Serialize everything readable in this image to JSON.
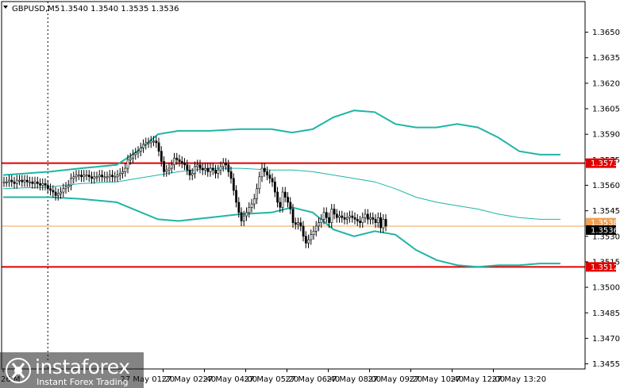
{
  "header": {
    "symbol_label": "GBPUSD,M5",
    "ohlc_text": "1.3540 1.3540 1.3535 1.3536",
    "dropdown_icon": "triangle-down-icon"
  },
  "brand": {
    "name": "instaforex",
    "tagline": "Instant Forex Trading",
    "icon": "instaforex-logo-icon"
  },
  "colors": {
    "background": "#ffffff",
    "candle": "#000000",
    "bollinger": "#1fb5a6",
    "moving_average": "#1fb5a6",
    "level_line": "#e00000",
    "current_price_line": "#f0a050",
    "current_price_tag": "#000000"
  },
  "chart_data": {
    "type": "candlestick",
    "symbol": "GBPUSD",
    "timeframe": "M5",
    "ylim": [
      1.3452,
      1.3668
    ],
    "y_ticks": [
      "1.3650",
      "1.3635",
      "1.3620",
      "1.3605",
      "1.3590",
      "1.3575",
      "1.3560",
      "1.3545",
      "1.3530",
      "1.3515",
      "1.3500",
      "1.3485",
      "1.3470",
      "1.3455"
    ],
    "x_ticks": [
      "26 May 2021",
      "27 May 01:20",
      "27 May 02:40",
      "27 May 04:00",
      "27 May 05:20",
      "27 May 06:40",
      "27 May 08:00",
      "27 May 09:20",
      "27 May 10:40",
      "27 May 12:00",
      "27 May 13:20"
    ],
    "x_tick_indices": [
      0,
      46,
      62,
      78,
      94,
      110,
      126,
      142,
      158,
      174,
      190
    ],
    "first_tick_display": "26 M",
    "session_separator_index": 17,
    "horizontal_levels": [
      {
        "value": 1.3573,
        "label": "1.3573",
        "color": "#e00000"
      },
      {
        "value": 1.3512,
        "label": "1.3512",
        "color": "#e00000"
      }
    ],
    "current_price": {
      "value": 1.3536,
      "label": "1.3536",
      "hidden_tag_value": "1.3538"
    },
    "closes": [
      1.3562,
      1.3562,
      1.3563,
      1.3562,
      1.3561,
      1.3563,
      1.3563,
      1.3562,
      1.3563,
      1.3562,
      1.3562,
      1.3561,
      1.3562,
      1.3561,
      1.356,
      1.3561,
      1.356,
      1.3558,
      1.3557,
      1.3556,
      1.3554,
      1.3555,
      1.3556,
      1.3558,
      1.3559,
      1.356,
      1.3564,
      1.3565,
      1.3566,
      1.3566,
      1.3565,
      1.3566,
      1.3566,
      1.3565,
      1.3564,
      1.3565,
      1.3565,
      1.3566,
      1.3565,
      1.3565,
      1.3565,
      1.3566,
      1.3565,
      1.3565,
      1.3566,
      1.3567,
      1.3568,
      1.357,
      1.3575,
      1.3576,
      1.3578,
      1.3579,
      1.358,
      1.3582,
      1.3584,
      1.3585,
      1.3585,
      1.3586,
      1.3586,
      1.3585,
      1.358,
      1.3574,
      1.3568,
      1.3569,
      1.357,
      1.3572,
      1.3576,
      1.3575,
      1.3574,
      1.3573,
      1.3572,
      1.3569,
      1.3566,
      1.3567,
      1.3571,
      1.3572,
      1.357,
      1.3569,
      1.357,
      1.3568,
      1.357,
      1.3569,
      1.3567,
      1.3569,
      1.3571,
      1.3573,
      1.3572,
      1.3568,
      1.3564,
      1.3557,
      1.355,
      1.3544,
      1.3539,
      1.3542,
      1.3544,
      1.3547,
      1.3549,
      1.3552,
      1.3558,
      1.3565,
      1.357,
      1.3568,
      1.3566,
      1.3564,
      1.3562,
      1.3556,
      1.355,
      1.3547,
      1.3556,
      1.3553,
      1.355,
      1.3546,
      1.3538,
      1.3537,
      1.3538,
      1.3536,
      1.353,
      1.3526,
      1.3528,
      1.3531,
      1.3533,
      1.3536,
      1.3538,
      1.354,
      1.3544,
      1.3541,
      1.3538,
      1.3546,
      1.3543,
      1.3541,
      1.3542,
      1.3541,
      1.354,
      1.3541,
      1.3542,
      1.3541,
      1.354,
      1.3539,
      1.3538,
      1.3541,
      1.3543,
      1.354,
      1.3541,
      1.354,
      1.3538,
      1.3541,
      1.3535,
      1.354,
      1.3536
    ],
    "bands": {
      "upper": [
        [
          0,
          1.3566
        ],
        [
          18,
          1.3568
        ],
        [
          30,
          1.357
        ],
        [
          44,
          1.3572
        ],
        [
          52,
          1.358
        ],
        [
          60,
          1.359
        ],
        [
          68,
          1.3592
        ],
        [
          80,
          1.3592
        ],
        [
          92,
          1.3593
        ],
        [
          104,
          1.3593
        ],
        [
          112,
          1.3591
        ],
        [
          120,
          1.3593
        ],
        [
          128,
          1.36
        ],
        [
          136,
          1.3604
        ],
        [
          144,
          1.3603
        ],
        [
          152,
          1.3596
        ],
        [
          160,
          1.3594
        ],
        [
          168,
          1.3594
        ],
        [
          176,
          1.3596
        ],
        [
          184,
          1.3594
        ],
        [
          192,
          1.3588
        ],
        [
          200,
          1.358
        ],
        [
          208,
          1.3578
        ],
        [
          216,
          1.3578
        ]
      ],
      "lower": [
        [
          0,
          1.3553
        ],
        [
          18,
          1.3553
        ],
        [
          30,
          1.3552
        ],
        [
          44,
          1.355
        ],
        [
          52,
          1.3545
        ],
        [
          60,
          1.354
        ],
        [
          68,
          1.3539
        ],
        [
          80,
          1.3541
        ],
        [
          92,
          1.3543
        ],
        [
          104,
          1.3544
        ],
        [
          112,
          1.3547
        ],
        [
          120,
          1.3544
        ],
        [
          128,
          1.3534
        ],
        [
          136,
          1.353
        ],
        [
          144,
          1.3533
        ],
        [
          152,
          1.3531
        ],
        [
          160,
          1.3522
        ],
        [
          168,
          1.3516
        ],
        [
          176,
          1.3513
        ],
        [
          184,
          1.3512
        ],
        [
          192,
          1.3513
        ],
        [
          200,
          1.3513
        ],
        [
          208,
          1.3514
        ],
        [
          216,
          1.3514
        ]
      ],
      "middle": [
        [
          0,
          1.3558
        ],
        [
          18,
          1.3559
        ],
        [
          30,
          1.3561
        ],
        [
          44,
          1.3562
        ],
        [
          52,
          1.3564
        ],
        [
          60,
          1.3566
        ],
        [
          68,
          1.3568
        ],
        [
          80,
          1.357
        ],
        [
          92,
          1.357
        ],
        [
          104,
          1.3569
        ],
        [
          112,
          1.3569
        ],
        [
          120,
          1.3568
        ],
        [
          128,
          1.3566
        ],
        [
          136,
          1.3564
        ],
        [
          144,
          1.3562
        ],
        [
          152,
          1.3558
        ],
        [
          160,
          1.3553
        ],
        [
          168,
          1.355
        ],
        [
          176,
          1.3548
        ],
        [
          184,
          1.3546
        ],
        [
          192,
          1.3543
        ],
        [
          200,
          1.3541
        ],
        [
          208,
          1.354
        ],
        [
          216,
          1.354
        ]
      ]
    }
  }
}
